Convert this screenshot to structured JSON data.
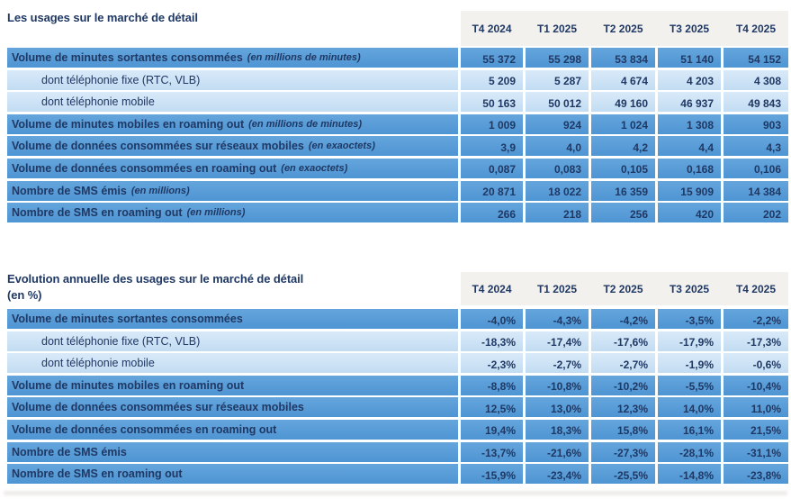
{
  "colors": {
    "text_navy": "#1F3864",
    "row_medium_blue": "#5B9FD8",
    "row_light_blue": "#CDE3F6",
    "header_band_gray": "#F2F1EE",
    "page_background": "#FFFFFF"
  },
  "table1": {
    "title": "Les usages sur le marché de détail",
    "columns": [
      "T4 2024",
      "T1 2025",
      "T2 2025",
      "T3 2025",
      "T4 2025"
    ],
    "rows": [
      {
        "label": "Volume de minutes sortantes consommées",
        "unit": "(en millions de minutes)",
        "indent": false,
        "tone": "medium",
        "values": [
          "55 372",
          "55 298",
          "53 834",
          "51 140",
          "54 152"
        ]
      },
      {
        "label": "dont téléphonie fixe (RTC, VLB)",
        "unit": "",
        "indent": true,
        "tone": "light",
        "values": [
          "5 209",
          "5 287",
          "4 674",
          "4 203",
          "4 308"
        ]
      },
      {
        "label": "dont téléphonie mobile",
        "unit": "",
        "indent": true,
        "tone": "light",
        "values": [
          "50 163",
          "50 012",
          "49 160",
          "46 937",
          "49 843"
        ]
      },
      {
        "label": "Volume de minutes mobiles en roaming out",
        "unit": "(en millions de minutes)",
        "indent": false,
        "tone": "medium",
        "values": [
          "1 009",
          "924",
          "1 024",
          "1 308",
          "903"
        ]
      },
      {
        "label": "Volume de données consommées sur réseaux mobiles",
        "unit": "(en exaoctets)",
        "indent": false,
        "tone": "medium",
        "values": [
          "3,9",
          "4,0",
          "4,2",
          "4,4",
          "4,3"
        ]
      },
      {
        "label": "Volume de données consommées en roaming out",
        "unit": "(en exaoctets)",
        "indent": false,
        "tone": "medium",
        "values": [
          "0,087",
          "0,083",
          "0,105",
          "0,168",
          "0,106"
        ]
      },
      {
        "label": "Nombre de SMS émis",
        "unit": "(en millions)",
        "indent": false,
        "tone": "medium",
        "values": [
          "20 871",
          "18 022",
          "16 359",
          "15 909",
          "14 384"
        ]
      },
      {
        "label": "Nombre de SMS en roaming out",
        "unit": "(en millions)",
        "indent": false,
        "tone": "medium",
        "values": [
          "266",
          "218",
          "256",
          "420",
          "202"
        ]
      }
    ]
  },
  "table2": {
    "title_line1": "Evolution annuelle des usages sur le marché de détail",
    "title_line2": "(en %)",
    "columns": [
      "T4 2024",
      "T1 2025",
      "T2 2025",
      "T3 2025",
      "T4 2025"
    ],
    "rows": [
      {
        "label": "Volume de minutes sortantes consommées",
        "unit": "",
        "indent": false,
        "tone": "medium",
        "values": [
          "-4,0%",
          "-4,3%",
          "-4,2%",
          "-3,5%",
          "-2,2%"
        ]
      },
      {
        "label": "dont téléphonie fixe (RTC, VLB)",
        "unit": "",
        "indent": true,
        "tone": "light",
        "values": [
          "-18,3%",
          "-17,4%",
          "-17,6%",
          "-17,9%",
          "-17,3%"
        ]
      },
      {
        "label": "dont téléphonie mobile",
        "unit": "",
        "indent": true,
        "tone": "light",
        "values": [
          "-2,3%",
          "-2,7%",
          "-2,7%",
          "-1,9%",
          "-0,6%"
        ]
      },
      {
        "label": "Volume de minutes mobiles en roaming out",
        "unit": "",
        "indent": false,
        "tone": "medium",
        "values": [
          "-8,8%",
          "-10,8%",
          "-10,2%",
          "-5,5%",
          "-10,4%"
        ]
      },
      {
        "label": "Volume de données consommées sur réseaux mobiles",
        "unit": "",
        "indent": false,
        "tone": "medium",
        "values": [
          "12,5%",
          "13,0%",
          "12,3%",
          "14,0%",
          "11,0%"
        ]
      },
      {
        "label": "Volume de données consommées en roaming out",
        "unit": "",
        "indent": false,
        "tone": "medium",
        "values": [
          "19,4%",
          "18,3%",
          "15,8%",
          "16,1%",
          "21,5%"
        ]
      },
      {
        "label": "Nombre de SMS émis",
        "unit": "",
        "indent": false,
        "tone": "medium",
        "values": [
          "-13,7%",
          "-21,6%",
          "-27,3%",
          "-28,1%",
          "-31,1%"
        ]
      },
      {
        "label": "Nombre de SMS en roaming out",
        "unit": "",
        "indent": false,
        "tone": "medium",
        "values": [
          "-15,9%",
          "-23,4%",
          "-25,5%",
          "-14,8%",
          "-23,8%"
        ]
      }
    ]
  }
}
